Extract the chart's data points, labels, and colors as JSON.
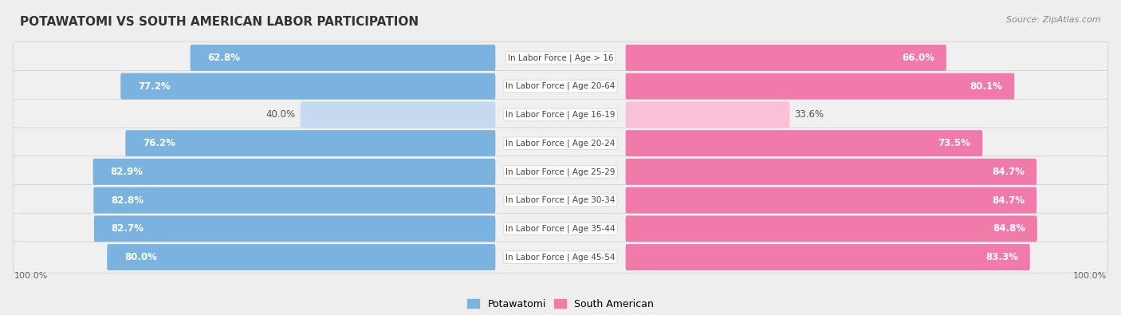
{
  "title": "POTAWATOMI VS SOUTH AMERICAN LABOR PARTICIPATION",
  "source": "Source: ZipAtlas.com",
  "categories": [
    "In Labor Force | Age > 16",
    "In Labor Force | Age 20-64",
    "In Labor Force | Age 16-19",
    "In Labor Force | Age 20-24",
    "In Labor Force | Age 25-29",
    "In Labor Force | Age 30-34",
    "In Labor Force | Age 35-44",
    "In Labor Force | Age 45-54"
  ],
  "potawatomi": [
    62.8,
    77.2,
    40.0,
    76.2,
    82.9,
    82.8,
    82.7,
    80.0
  ],
  "south_american": [
    66.0,
    80.1,
    33.6,
    73.5,
    84.7,
    84.7,
    84.8,
    83.3
  ],
  "potawatomi_color": "#7ab3e0",
  "potawatomi_color_light": "#c5d9f0",
  "south_american_color": "#f07aaa",
  "south_american_color_light": "#f9c0d8",
  "bg_color": "#eeeeee",
  "row_bg_color": "#e8e8e8",
  "row_inner_color": "#f8f8f8",
  "label_fontsize": 8.5,
  "title_fontsize": 11,
  "source_fontsize": 8,
  "legend_fontsize": 9,
  "axis_label": "100.0%"
}
